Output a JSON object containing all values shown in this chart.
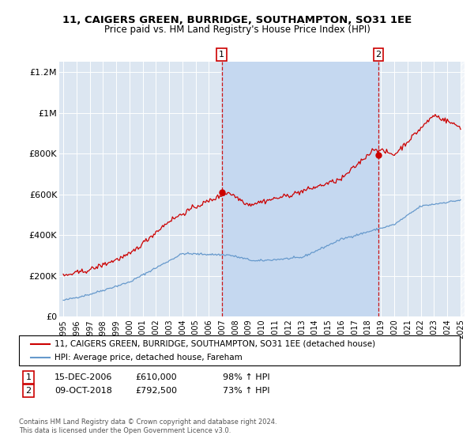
{
  "title": "11, CAIGERS GREEN, BURRIDGE, SOUTHAMPTON, SO31 1EE",
  "subtitle": "Price paid vs. HM Land Registry's House Price Index (HPI)",
  "red_label": "11, CAIGERS GREEN, BURRIDGE, SOUTHAMPTON, SO31 1EE (detached house)",
  "blue_label": "HPI: Average price, detached house, Fareham",
  "transaction1_date": "15-DEC-2006",
  "transaction1_price": 610000,
  "transaction1_info": "98% ↑ HPI",
  "transaction2_date": "09-OCT-2018",
  "transaction2_price": 792500,
  "transaction2_info": "73% ↑ HPI",
  "footer": "Contains HM Land Registry data © Crown copyright and database right 2024.\nThis data is licensed under the Open Government Licence v3.0.",
  "red_color": "#cc0000",
  "blue_color": "#6699cc",
  "bg_color": "#dce6f1",
  "highlight_color": "#c5d8f0",
  "ylim": [
    0,
    1250000
  ],
  "yticks": [
    0,
    200000,
    400000,
    600000,
    800000,
    1000000,
    1200000
  ],
  "ytick_labels": [
    "£0",
    "£200K",
    "£400K",
    "£600K",
    "£800K",
    "£1M",
    "£1.2M"
  ],
  "xlim_start": 1994.7,
  "xlim_end": 2025.3,
  "t1_year": 2006.958,
  "t2_year": 2018.792
}
